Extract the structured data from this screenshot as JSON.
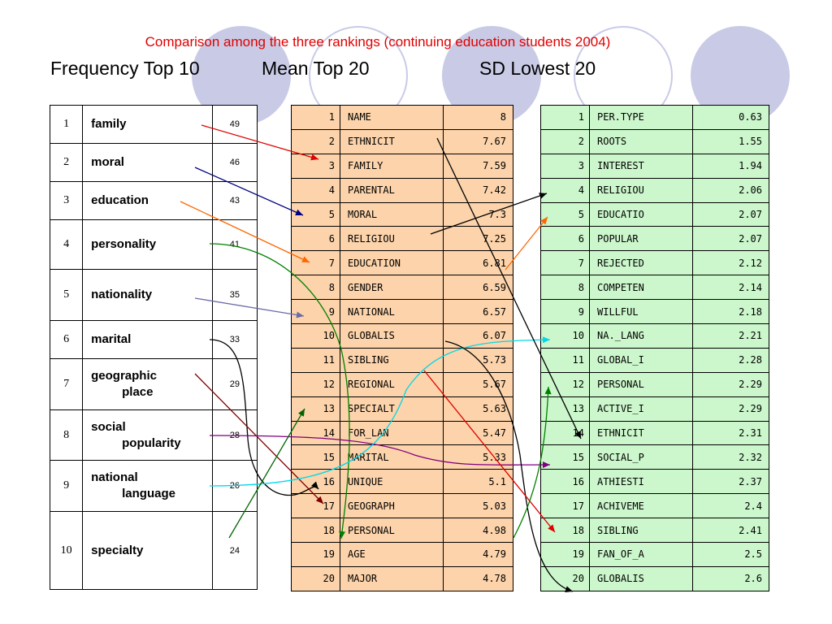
{
  "title": "Comparison among the three rankings (continuing education students 2004)",
  "headings": {
    "frequency": "Frequency Top 10",
    "mean": "Mean Top 20",
    "sd": "SD Lowest 20"
  },
  "frequency_top10": [
    {
      "rank": "1",
      "word": "family",
      "word2": "",
      "count": "49"
    },
    {
      "rank": "2",
      "word": "moral",
      "word2": "",
      "count": "46"
    },
    {
      "rank": "3",
      "word": "education",
      "word2": "",
      "count": "43"
    },
    {
      "rank": "4",
      "word": "personality",
      "word2": "",
      "count": "41"
    },
    {
      "rank": "5",
      "word": "nationality",
      "word2": "",
      "count": "35"
    },
    {
      "rank": "6",
      "word": "marital",
      "word2": "",
      "count": "33"
    },
    {
      "rank": "7",
      "word": "geographic",
      "word2": "place",
      "count": "29"
    },
    {
      "rank": "8",
      "word": "social",
      "word2": "popularity",
      "count": "28"
    },
    {
      "rank": "9",
      "word": "national",
      "word2": "language",
      "count": "26"
    },
    {
      "rank": "10",
      "word": "specialty",
      "word2": "",
      "count": "24"
    }
  ],
  "mean_top20": [
    {
      "rank": "1",
      "name": "NAME",
      "value": "8"
    },
    {
      "rank": "2",
      "name": "ETHNICIT",
      "value": "7.67"
    },
    {
      "rank": "3",
      "name": "FAMILY",
      "value": "7.59"
    },
    {
      "rank": "4",
      "name": "PARENTAL",
      "value": "7.42"
    },
    {
      "rank": "5",
      "name": "MORAL",
      "value": "7.3"
    },
    {
      "rank": "6",
      "name": "RELIGIOU",
      "value": "7.25"
    },
    {
      "rank": "7",
      "name": "EDUCATION",
      "value": "6.81"
    },
    {
      "rank": "8",
      "name": "GENDER",
      "value": "6.59"
    },
    {
      "rank": "9",
      "name": "NATIONAL",
      "value": "6.57"
    },
    {
      "rank": "10",
      "name": "GLOBALIS",
      "value": "6.07"
    },
    {
      "rank": "11",
      "name": "SIBLING",
      "value": "5.73"
    },
    {
      "rank": "12",
      "name": "REGIONAL",
      "value": "5.67"
    },
    {
      "rank": "13",
      "name": "SPECIALT",
      "value": "5.63"
    },
    {
      "rank": "14",
      "name": "FOR_LAN",
      "value": "5.47"
    },
    {
      "rank": "15",
      "name": "MARITAL",
      "value": "5.33"
    },
    {
      "rank": "16",
      "name": "UNIQUE",
      "value": "5.1"
    },
    {
      "rank": "17",
      "name": "GEOGRAPH",
      "value": "5.03"
    },
    {
      "rank": "18",
      "name": "PERSONAL",
      "value": "4.98"
    },
    {
      "rank": "19",
      "name": "AGE",
      "value": "4.79"
    },
    {
      "rank": "20",
      "name": "MAJOR",
      "value": "4.78"
    }
  ],
  "sd_lowest20": [
    {
      "rank": "1",
      "name": "PER.TYPE",
      "value": "0.63"
    },
    {
      "rank": "2",
      "name": "ROOTS",
      "value": "1.55"
    },
    {
      "rank": "3",
      "name": "INTEREST",
      "value": "1.94"
    },
    {
      "rank": "4",
      "name": "RELIGIOU",
      "value": "2.06"
    },
    {
      "rank": "5",
      "name": "EDUCATIO",
      "value": "2.07"
    },
    {
      "rank": "6",
      "name": "POPULAR",
      "value": "2.07"
    },
    {
      "rank": "7",
      "name": "REJECTED",
      "value": "2.12"
    },
    {
      "rank": "8",
      "name": "COMPETEN",
      "value": "2.14"
    },
    {
      "rank": "9",
      "name": "WILLFUL",
      "value": "2.18"
    },
    {
      "rank": "10",
      "name": "NA._LANG",
      "value": "2.21"
    },
    {
      "rank": "11",
      "name": "GLOBAL_I",
      "value": "2.28"
    },
    {
      "rank": "12",
      "name": "PERSONAL",
      "value": "2.29"
    },
    {
      "rank": "13",
      "name": "ACTIVE_I",
      "value": "2.29"
    },
    {
      "rank": "14",
      "name": "ETHNICIT",
      "value": "2.31"
    },
    {
      "rank": "15",
      "name": "SOCIAL_P",
      "value": "2.32"
    },
    {
      "rank": "16",
      "name": "ATHIESTI",
      "value": "2.37"
    },
    {
      "rank": "17",
      "name": "ACHIVEME",
      "value": "2.4"
    },
    {
      "rank": "18",
      "name": "SIBLING",
      "value": "2.41"
    },
    {
      "rank": "19",
      "name": "FAN_OF_A",
      "value": "2.5"
    },
    {
      "rank": "20",
      "name": "GLOBALIS",
      "value": "2.6"
    }
  ],
  "colors": {
    "title": "#e00000",
    "mean_fill": "#fcd3aa",
    "sd_fill": "#ccf7cc",
    "decor_circles": "#c9cbe6",
    "family_link": "#e00000",
    "moral_link": "#000080",
    "education_link": "#ff6600",
    "personality_link": "#008000",
    "nationality_link": "#6b6ba8",
    "marital_link": "#000000",
    "geographic_link": "#800000",
    "social_link": "#800080",
    "language_link": "#00d8e8",
    "specialty_link": "#006400"
  }
}
